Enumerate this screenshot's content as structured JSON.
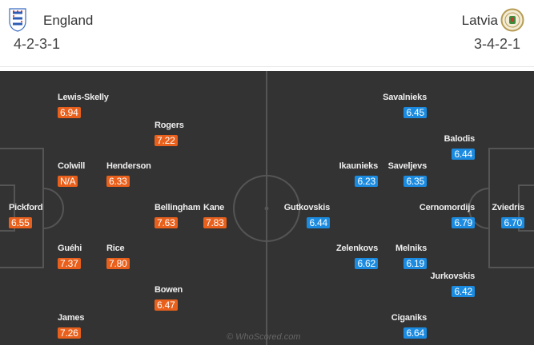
{
  "home": {
    "name": "England",
    "formation": "4-2-3-1",
    "crest_icon": "england-three-lions-crest",
    "rating_color": "#e8601c",
    "players": [
      {
        "name": "Lewis-Skelly",
        "rating": "6.94"
      },
      {
        "name": "Rogers",
        "rating": "7.22"
      },
      {
        "name": "Colwill",
        "rating": "N/A"
      },
      {
        "name": "Henderson",
        "rating": "6.33"
      },
      {
        "name": "Pickford",
        "rating": "6.55"
      },
      {
        "name": "Bellingham",
        "rating": "7.63"
      },
      {
        "name": "Kane",
        "rating": "7.83"
      },
      {
        "name": "Guéhi",
        "rating": "7.37"
      },
      {
        "name": "Rice",
        "rating": "7.80"
      },
      {
        "name": "Bowen",
        "rating": "6.47"
      },
      {
        "name": "James",
        "rating": "7.26"
      }
    ]
  },
  "away": {
    "name": "Latvia",
    "formation": "3-4-2-1",
    "crest_icon": "latvia-fa-crest",
    "rating_color": "#1a8be0",
    "players": [
      {
        "name": "Savalnieks",
        "rating": "6.45"
      },
      {
        "name": "Balodis",
        "rating": "6.44"
      },
      {
        "name": "Ikaunieks",
        "rating": "6.23"
      },
      {
        "name": "Saveljevs",
        "rating": "6.35"
      },
      {
        "name": "Gutkovskis",
        "rating": "6.44"
      },
      {
        "name": "Cernomordijs",
        "rating": "6.79"
      },
      {
        "name": "Zviedris",
        "rating": "6.70"
      },
      {
        "name": "Zelenkovs",
        "rating": "6.62"
      },
      {
        "name": "Melniks",
        "rating": "6.19"
      },
      {
        "name": "Jurkovskis",
        "rating": "6.42"
      },
      {
        "name": "Ciganiks",
        "rating": "6.64"
      }
    ]
  },
  "watermark": "© WhoScored.com"
}
